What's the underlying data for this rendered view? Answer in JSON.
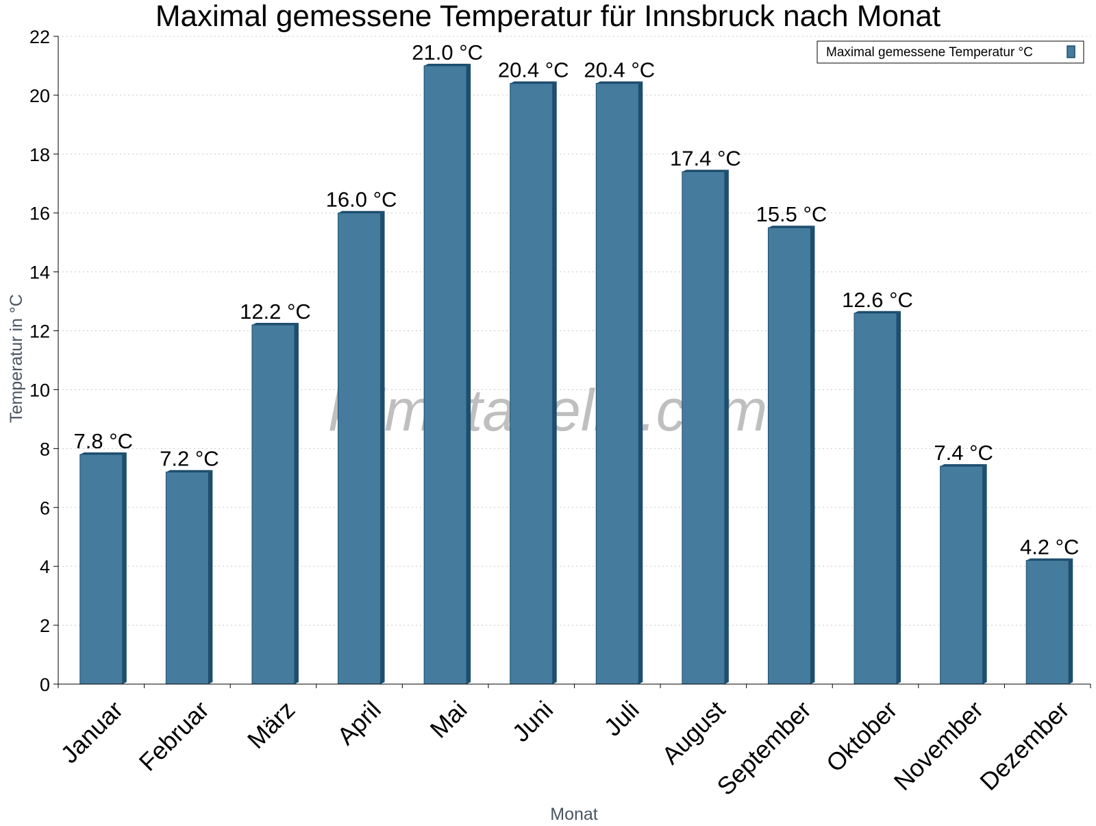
{
  "chart_data": {
    "type": "bar",
    "title": "Maximal gemessene Temperatur für Innsbruck nach Monat",
    "xlabel": "Monat",
    "ylabel": "Temperatur in °C",
    "ylim": [
      0,
      22
    ],
    "yticks": [
      0,
      2,
      4,
      6,
      8,
      10,
      12,
      14,
      16,
      18,
      20,
      22
    ],
    "grid": "horizontal dotted",
    "legend_position": "top-right",
    "categories": [
      "Januar",
      "Februar",
      "März",
      "April",
      "Mai",
      "Juni",
      "Juli",
      "August",
      "September",
      "Oktober",
      "November",
      "Dezember"
    ],
    "series": [
      {
        "name": "Maximal gemessene Temperatur °C",
        "values": [
          7.8,
          7.2,
          12.2,
          16.0,
          21.0,
          20.4,
          20.4,
          17.4,
          15.5,
          12.6,
          7.4,
          4.2
        ],
        "data_labels": [
          "7.8 °C",
          "7.2 °C",
          "12.2 °C",
          "16.0 °C",
          "21.0 °C",
          "20.4 °C",
          "20.4 °C",
          "17.4 °C",
          "15.5 °C",
          "12.6 °C",
          "7.4 °C",
          "4.2 °C"
        ]
      }
    ],
    "colors": {
      "bar_fill": "#457b9d",
      "bar_edge": "#1d4e6e",
      "grid": "#c8c8c8",
      "axis": "#000000"
    },
    "watermark": "klimatabelle.com"
  }
}
